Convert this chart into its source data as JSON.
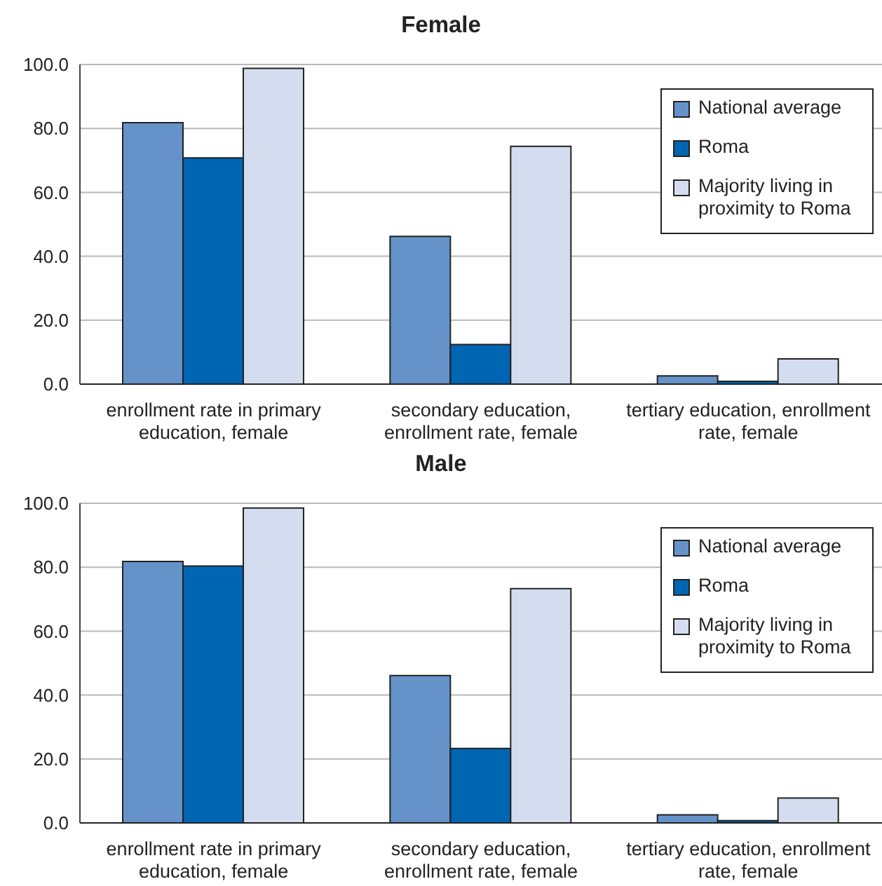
{
  "chart_data": [
    {
      "type": "bar",
      "title": "Female",
      "categories": [
        "enrollment rate in primary education, female",
        "secondary education, enrollment rate, female",
        "tertiary education, enrollment rate, female"
      ],
      "series": [
        {
          "name": "National average",
          "color": "#6592c9",
          "values": [
            81.8,
            46.2,
            2.6
          ]
        },
        {
          "name": "Roma",
          "color": "#0066b3",
          "values": [
            70.8,
            12.4,
            0.9
          ]
        },
        {
          "name": "Majority living in proximity to Roma",
          "color": "#d4dcef",
          "values": [
            98.8,
            74.4,
            7.9
          ]
        }
      ],
      "ylim": [
        0,
        100
      ],
      "yticks": [
        {
          "value": 0,
          "label": "0.0"
        },
        {
          "value": 20,
          "label": "20.0"
        },
        {
          "value": 40,
          "label": "40.0"
        },
        {
          "value": 60,
          "label": "60.0"
        },
        {
          "value": 80,
          "label": "80.0"
        },
        {
          "value": 100,
          "label": "100.0"
        }
      ],
      "grid": "y",
      "legend": "top right"
    },
    {
      "type": "bar",
      "title": "Male",
      "categories": [
        "enrollment rate in primary education, female",
        "secondary education, enrollment rate, female",
        "tertiary education, enrollment rate, female"
      ],
      "series": [
        {
          "name": "National average",
          "color": "#6592c9",
          "values": [
            81.8,
            46.1,
            2.5
          ]
        },
        {
          "name": "Roma",
          "color": "#0066b3",
          "values": [
            80.4,
            23.3,
            0.7
          ]
        },
        {
          "name": "Majority living in proximity to Roma",
          "color": "#d4dcef",
          "values": [
            98.5,
            73.3,
            7.8
          ]
        }
      ],
      "ylim": [
        0,
        100
      ],
      "yticks": [
        {
          "value": 0,
          "label": "0.0"
        },
        {
          "value": 20,
          "label": "20.0"
        },
        {
          "value": 40,
          "label": "40.0"
        },
        {
          "value": 60,
          "label": "60.0"
        },
        {
          "value": 80,
          "label": "80.0"
        },
        {
          "value": 100,
          "label": "100.0"
        }
      ],
      "grid": "y",
      "legend": "top right"
    }
  ]
}
